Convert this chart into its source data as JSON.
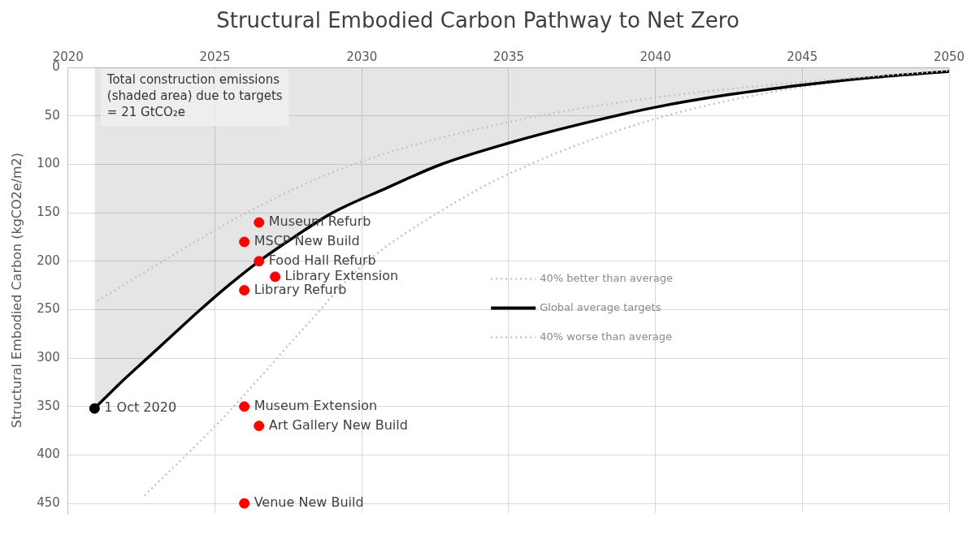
{
  "chart_data": {
    "type": "line",
    "title": "Structural Embodied Carbon Pathway to Net Zero",
    "ylabel": "Structural Embodied Carbon (kgCO2e/m2)",
    "xlim": [
      2020,
      2050
    ],
    "xticks": [
      2020,
      2025,
      2030,
      2035,
      2040,
      2045,
      2050
    ],
    "ylim": [
      460,
      0
    ],
    "yticks": [
      0,
      50,
      100,
      150,
      200,
      250,
      300,
      350,
      400,
      450
    ],
    "grid": true,
    "legend": "right",
    "series": [
      {
        "name": "40% better than average",
        "color": "#c4c4c4",
        "line_style": "dotted",
        "x": [
          2021,
          2023.5,
          2026,
          2029.7,
          2035.2,
          2040,
          2045,
          2050
        ],
        "values": [
          241,
          195,
          151,
          100,
          55,
          31,
          15,
          3
        ]
      },
      {
        "name": "Global average targets",
        "type": "area",
        "color": "#000000",
        "line_style": "solid",
        "x": [
          2020.9,
          2021.8,
          2022.7,
          2023.6,
          2024.5,
          2025.5,
          2026.5,
          2027.7,
          2029,
          2030.8,
          2032.7,
          2035,
          2037.5,
          2040,
          2042.5,
          2045,
          2047.5,
          2050
        ],
        "values": [
          352,
          325,
          300,
          275,
          250,
          224,
          200,
          175,
          150,
          125,
          100,
          78,
          58,
          41,
          28,
          18,
          10,
          4
        ]
      },
      {
        "name": "40% worse than average",
        "color": "#c4c4c4",
        "line_style": "dotted",
        "x": [
          2022.6,
          2025.3,
          2028,
          2030,
          2032.7,
          2035.2,
          2040,
          2045,
          2050
        ],
        "values": [
          442,
          361,
          270,
          205,
          148,
          107,
          53,
          20,
          4
        ]
      },
      {
        "type": "scatter",
        "marker": "circle",
        "color": "#000000",
        "x": [
          2020.9
        ],
        "values": [
          352
        ]
      },
      {
        "type": "scatter",
        "marker": "circle",
        "color": "#ff0000",
        "x": [
          2026.5,
          2026,
          2026.5,
          2027.05,
          2026,
          2026,
          2026.5,
          2026
        ],
        "values": [
          160,
          180,
          200,
          216,
          230,
          350,
          370,
          450
        ]
      }
    ],
    "annotations": [
      "Total construction emissions\n(shaded area) due to targets\n= 21 GtCO₂e",
      {
        "text": "1 Oct 2020",
        "x": 2020.9,
        "y": 352
      },
      {
        "text": "Museum Refurb",
        "x": 2026.5,
        "y": 160
      },
      {
        "text": "MSCP New Build",
        "x": 2026,
        "y": 180
      },
      {
        "text": "Food Hall Refurb",
        "x": 2026.5,
        "y": 200
      },
      {
        "text": "Library Extension",
        "x": 2027.05,
        "y": 216
      },
      {
        "text": "Library Refurb",
        "x": 2026,
        "y": 230
      },
      {
        "text": "Museum Extension",
        "x": 2026,
        "y": 350
      },
      {
        "text": "Art Gallery New Build",
        "x": 2026.5,
        "y": 370
      },
      {
        "text": "Venue New Build",
        "x": 2026,
        "y": 450
      }
    ]
  }
}
